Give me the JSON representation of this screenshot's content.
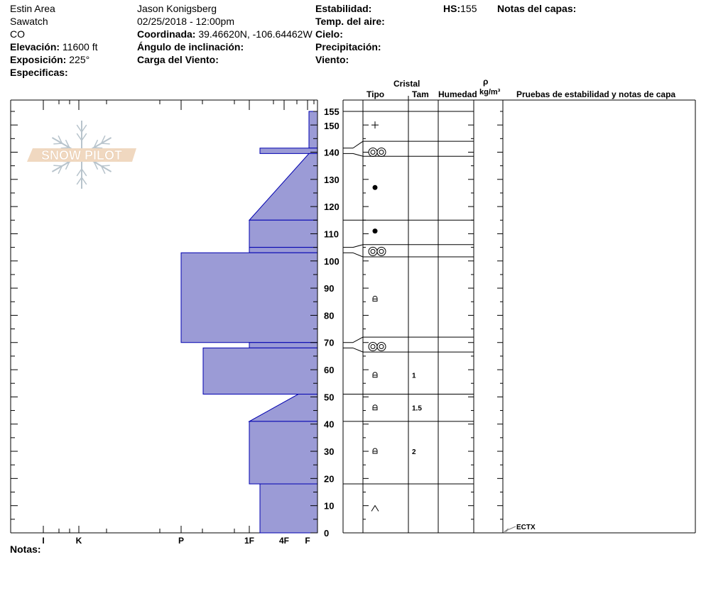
{
  "header": {
    "area": "Estin Area",
    "range": "Sawatch",
    "state": "CO",
    "elevation_label": "Elevación:",
    "elevation_value": "11600 ft",
    "aspect_label": "Exposición:",
    "aspect_value": "225°",
    "specifics_label": "Especificas:",
    "observer": "Jason Konigsberg",
    "datetime": "02/25/2018 - 12:00pm",
    "coord_label": "Coordinada:",
    "coord_value": "39.46620N, -106.64462W",
    "slope_label": "Ángulo de inclinación:",
    "wind_load_label": "Carga del Viento:",
    "stability_label": "Estabilidad:",
    "air_temp_label": "Temp. del aire:",
    "sky_label": "Cielo:",
    "precip_label": "Precipitación:",
    "wind_label": "Viento:",
    "hs_label": "HS:",
    "hs_value": "155",
    "layer_notes_label": "Notas del capas:"
  },
  "table_headers": {
    "crystal": "Cristal",
    "type": "Tipo",
    "size": "Tam",
    "moisture": "Humedad",
    "rho": "ρ",
    "density_unit": "kg/m³",
    "stability_tests": "Pruebas de estabilidad y notas de capa"
  },
  "notes_label": "Notas:",
  "logo_text": "SNOW PILOT",
  "colors": {
    "hardness_fill": "#9b9bd6",
    "hardness_stroke": "#0000b0",
    "logo_band": "#f0d8c0",
    "logo_flake": "#b8c4cc"
  },
  "chart_data": {
    "type": "snow-profile",
    "y_axis": {
      "label": "",
      "range": [
        0,
        155
      ],
      "ticks": [
        0,
        10,
        20,
        30,
        40,
        50,
        60,
        70,
        80,
        90,
        100,
        110,
        120,
        130,
        140,
        150,
        155
      ]
    },
    "x_axis": {
      "hardness_ticks": [
        "I",
        "K",
        "P",
        "1F",
        "4F",
        "F"
      ]
    },
    "hardness_layers": [
      {
        "top": 155,
        "bottom": 141.5,
        "hardness_top": "F",
        "hardness_bottom": "F"
      },
      {
        "top": 141.5,
        "bottom": 139.5,
        "hardness_top": "1F-",
        "hardness_bottom": "1F-"
      },
      {
        "top": 139.5,
        "bottom": 115,
        "hardness_top": "F",
        "hardness_bottom": "1F"
      },
      {
        "top": 115,
        "bottom": 105,
        "hardness_top": "1F",
        "hardness_bottom": "1F"
      },
      {
        "top": 105,
        "bottom": 103,
        "hardness_top": "1F",
        "hardness_bottom": "1F"
      },
      {
        "top": 103,
        "bottom": 70,
        "hardness_top": "P",
        "hardness_bottom": "P"
      },
      {
        "top": 70,
        "bottom": 68,
        "hardness_top": "1F",
        "hardness_bottom": "1F"
      },
      {
        "top": 68,
        "bottom": 51,
        "hardness_top": "P-",
        "hardness_bottom": "P-"
      },
      {
        "top": 51,
        "bottom": 41,
        "hardness_top": "4F+",
        "hardness_bottom": "1F"
      },
      {
        "top": 41,
        "bottom": 18,
        "hardness_top": "1F",
        "hardness_bottom": "1F"
      },
      {
        "top": 18,
        "bottom": 0,
        "hardness_top": "1F-",
        "hardness_bottom": "1F-"
      }
    ],
    "table_layers": [
      {
        "top": 155,
        "bottom": 144,
        "grain": "new-snow",
        "symbol_at": 150,
        "size": ""
      },
      {
        "top": 144,
        "bottom": 138.5,
        "grain": "melt-freeze",
        "symbol_at": 140,
        "size": ""
      },
      {
        "top": 138.5,
        "bottom": 115,
        "grain": "round",
        "symbol_at": 127,
        "size": ""
      },
      {
        "top": 115,
        "bottom": 106,
        "grain": "round",
        "symbol_at": 111,
        "size": ""
      },
      {
        "top": 106,
        "bottom": 101.5,
        "grain": "melt-freeze",
        "symbol_at": 103.5,
        "size": ""
      },
      {
        "top": 101.5,
        "bottom": 72,
        "grain": "mixed-facet",
        "symbol_at": 86,
        "size": ""
      },
      {
        "top": 72,
        "bottom": 66.5,
        "grain": "melt-freeze",
        "symbol_at": 68.5,
        "size": ""
      },
      {
        "top": 66.5,
        "bottom": 51,
        "grain": "mixed-facet",
        "symbol_at": 58,
        "size": "1"
      },
      {
        "top": 51,
        "bottom": 41,
        "grain": "mixed-facet",
        "symbol_at": 46,
        "size": "1.5"
      },
      {
        "top": 41,
        "bottom": 18,
        "grain": "mixed-facet",
        "symbol_at": 30,
        "size": "2"
      },
      {
        "top": 18,
        "bottom": 0,
        "grain": "depth-hoar",
        "symbol_at": 9,
        "size": ""
      }
    ],
    "stability_tests": [
      {
        "label": "ECTX",
        "depth": 0
      }
    ]
  }
}
